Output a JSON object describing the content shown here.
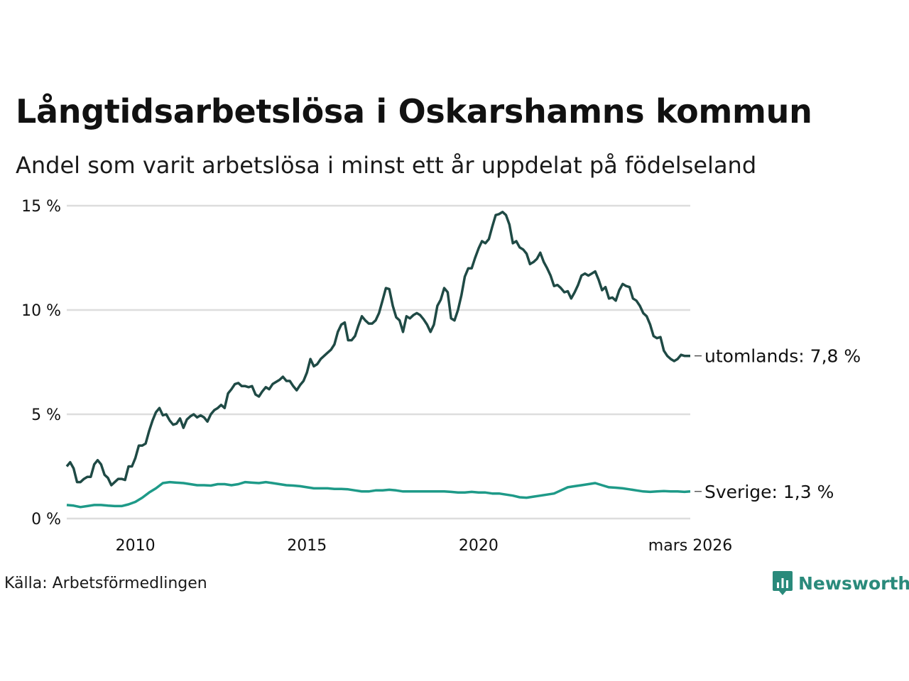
{
  "title": "Långtidsarbetslösa i Oskarshamns kommun",
  "subtitle": "Andel som varit arbetslösa i minst ett år uppdelat på födelseland",
  "source": "Källa: Arbetsförmedlingen",
  "brand": "Newsworthy",
  "colors": {
    "utomlands": "#1f4a45",
    "sverige": "#1e9a88",
    "grid": "#dddddd",
    "brand": "#2a8a7b"
  },
  "chart_data": {
    "type": "line",
    "title": "Långtidsarbetslösa i Oskarshamns kommun",
    "ylabel": "",
    "xlabel": "",
    "ylim": [
      0,
      15
    ],
    "xlim": [
      2008.0,
      2026.17
    ],
    "y_ticks": [
      0,
      5,
      10,
      15
    ],
    "y_tick_labels": [
      "0 %",
      "5 %",
      "10 %",
      "15 %"
    ],
    "x_ticks": [
      2010,
      2015,
      2020,
      2026.17
    ],
    "x_tick_labels": [
      "2010",
      "2015",
      "2020",
      "mars 2026"
    ],
    "grid": true,
    "series": [
      {
        "name": "utomlands",
        "end_label": "utomlands: 7,8 %",
        "points": [
          [
            2008.0,
            2.5
          ],
          [
            2008.1,
            2.7
          ],
          [
            2008.2,
            2.4
          ],
          [
            2008.3,
            1.75
          ],
          [
            2008.4,
            1.75
          ],
          [
            2008.5,
            1.9
          ],
          [
            2008.6,
            2.0
          ],
          [
            2008.7,
            2.0
          ],
          [
            2008.8,
            2.6
          ],
          [
            2008.9,
            2.8
          ],
          [
            2009.0,
            2.6
          ],
          [
            2009.1,
            2.1
          ],
          [
            2009.2,
            1.95
          ],
          [
            2009.3,
            1.6
          ],
          [
            2009.4,
            1.75
          ],
          [
            2009.5,
            1.9
          ],
          [
            2009.6,
            1.9
          ],
          [
            2009.7,
            1.85
          ],
          [
            2009.8,
            2.5
          ],
          [
            2009.9,
            2.5
          ],
          [
            2010.0,
            2.9
          ],
          [
            2010.1,
            3.5
          ],
          [
            2010.2,
            3.5
          ],
          [
            2010.3,
            3.6
          ],
          [
            2010.4,
            4.2
          ],
          [
            2010.5,
            4.7
          ],
          [
            2010.6,
            5.1
          ],
          [
            2010.7,
            5.3
          ],
          [
            2010.8,
            4.95
          ],
          [
            2010.9,
            5.0
          ],
          [
            2011.0,
            4.7
          ],
          [
            2011.1,
            4.5
          ],
          [
            2011.2,
            4.55
          ],
          [
            2011.3,
            4.8
          ],
          [
            2011.4,
            4.35
          ],
          [
            2011.5,
            4.75
          ],
          [
            2011.6,
            4.9
          ],
          [
            2011.7,
            5.0
          ],
          [
            2011.8,
            4.85
          ],
          [
            2011.9,
            4.95
          ],
          [
            2012.0,
            4.85
          ],
          [
            2012.1,
            4.65
          ],
          [
            2012.2,
            5.0
          ],
          [
            2012.3,
            5.2
          ],
          [
            2012.4,
            5.3
          ],
          [
            2012.5,
            5.45
          ],
          [
            2012.6,
            5.3
          ],
          [
            2012.7,
            6.0
          ],
          [
            2012.8,
            6.2
          ],
          [
            2012.9,
            6.45
          ],
          [
            2013.0,
            6.5
          ],
          [
            2013.1,
            6.35
          ],
          [
            2013.2,
            6.35
          ],
          [
            2013.3,
            6.3
          ],
          [
            2013.4,
            6.35
          ],
          [
            2013.5,
            5.95
          ],
          [
            2013.6,
            5.85
          ],
          [
            2013.7,
            6.1
          ],
          [
            2013.8,
            6.3
          ],
          [
            2013.9,
            6.2
          ],
          [
            2014.0,
            6.45
          ],
          [
            2014.1,
            6.55
          ],
          [
            2014.2,
            6.65
          ],
          [
            2014.3,
            6.8
          ],
          [
            2014.4,
            6.6
          ],
          [
            2014.5,
            6.6
          ],
          [
            2014.6,
            6.35
          ],
          [
            2014.7,
            6.15
          ],
          [
            2014.8,
            6.4
          ],
          [
            2014.9,
            6.6
          ],
          [
            2015.0,
            7.0
          ],
          [
            2015.1,
            7.65
          ],
          [
            2015.2,
            7.3
          ],
          [
            2015.3,
            7.4
          ],
          [
            2015.4,
            7.65
          ],
          [
            2015.5,
            7.8
          ],
          [
            2015.6,
            7.95
          ],
          [
            2015.7,
            8.1
          ],
          [
            2015.8,
            8.35
          ],
          [
            2015.9,
            8.95
          ],
          [
            2016.0,
            9.3
          ],
          [
            2016.1,
            9.4
          ],
          [
            2016.2,
            8.55
          ],
          [
            2016.3,
            8.55
          ],
          [
            2016.4,
            8.75
          ],
          [
            2016.5,
            9.25
          ],
          [
            2016.6,
            9.7
          ],
          [
            2016.7,
            9.5
          ],
          [
            2016.8,
            9.35
          ],
          [
            2016.9,
            9.35
          ],
          [
            2017.0,
            9.5
          ],
          [
            2017.1,
            9.85
          ],
          [
            2017.2,
            10.45
          ],
          [
            2017.3,
            11.05
          ],
          [
            2017.4,
            11.0
          ],
          [
            2017.5,
            10.2
          ],
          [
            2017.6,
            9.65
          ],
          [
            2017.7,
            9.5
          ],
          [
            2017.8,
            8.95
          ],
          [
            2017.9,
            9.7
          ],
          [
            2018.0,
            9.6
          ],
          [
            2018.1,
            9.75
          ],
          [
            2018.2,
            9.85
          ],
          [
            2018.3,
            9.75
          ],
          [
            2018.4,
            9.55
          ],
          [
            2018.5,
            9.3
          ],
          [
            2018.6,
            8.95
          ],
          [
            2018.7,
            9.3
          ],
          [
            2018.8,
            10.2
          ],
          [
            2018.9,
            10.5
          ],
          [
            2019.0,
            11.05
          ],
          [
            2019.1,
            10.85
          ],
          [
            2019.2,
            9.6
          ],
          [
            2019.3,
            9.5
          ],
          [
            2019.4,
            10.0
          ],
          [
            2019.5,
            10.7
          ],
          [
            2019.6,
            11.6
          ],
          [
            2019.7,
            12.0
          ],
          [
            2019.8,
            12.0
          ],
          [
            2019.9,
            12.5
          ],
          [
            2020.0,
            12.95
          ],
          [
            2020.1,
            13.3
          ],
          [
            2020.2,
            13.2
          ],
          [
            2020.3,
            13.4
          ],
          [
            2020.4,
            14.0
          ],
          [
            2020.5,
            14.55
          ],
          [
            2020.6,
            14.6
          ],
          [
            2020.7,
            14.7
          ],
          [
            2020.8,
            14.55
          ],
          [
            2020.9,
            14.1
          ],
          [
            2021.0,
            13.2
          ],
          [
            2021.1,
            13.3
          ],
          [
            2021.2,
            13.0
          ],
          [
            2021.3,
            12.9
          ],
          [
            2021.4,
            12.7
          ],
          [
            2021.5,
            12.2
          ],
          [
            2021.6,
            12.3
          ],
          [
            2021.7,
            12.45
          ],
          [
            2021.8,
            12.75
          ],
          [
            2021.9,
            12.3
          ],
          [
            2022.0,
            12.0
          ],
          [
            2022.1,
            11.65
          ],
          [
            2022.2,
            11.15
          ],
          [
            2022.3,
            11.2
          ],
          [
            2022.4,
            11.05
          ],
          [
            2022.5,
            10.85
          ],
          [
            2022.6,
            10.9
          ],
          [
            2022.7,
            10.55
          ],
          [
            2022.8,
            10.85
          ],
          [
            2022.9,
            11.2
          ],
          [
            2023.0,
            11.65
          ],
          [
            2023.1,
            11.75
          ],
          [
            2023.2,
            11.65
          ],
          [
            2023.3,
            11.75
          ],
          [
            2023.4,
            11.85
          ],
          [
            2023.5,
            11.45
          ],
          [
            2023.6,
            10.95
          ],
          [
            2023.7,
            11.1
          ],
          [
            2023.8,
            10.55
          ],
          [
            2023.9,
            10.6
          ],
          [
            2024.0,
            10.45
          ],
          [
            2024.1,
            10.95
          ],
          [
            2024.2,
            11.25
          ],
          [
            2024.3,
            11.15
          ],
          [
            2024.4,
            11.1
          ],
          [
            2024.5,
            10.55
          ],
          [
            2024.6,
            10.45
          ],
          [
            2024.7,
            10.2
          ],
          [
            2024.8,
            9.85
          ],
          [
            2024.9,
            9.7
          ],
          [
            2025.0,
            9.3
          ],
          [
            2025.1,
            8.75
          ],
          [
            2025.2,
            8.65
          ],
          [
            2025.3,
            8.7
          ],
          [
            2025.4,
            8.05
          ],
          [
            2025.5,
            7.8
          ],
          [
            2025.6,
            7.65
          ],
          [
            2025.7,
            7.55
          ],
          [
            2025.8,
            7.65
          ],
          [
            2025.9,
            7.85
          ],
          [
            2026.0,
            7.8
          ],
          [
            2026.17,
            7.8
          ]
        ]
      },
      {
        "name": "Sverige",
        "end_label": "Sverige: 1,3 %",
        "points": [
          [
            2008.0,
            0.65
          ],
          [
            2008.2,
            0.62
          ],
          [
            2008.4,
            0.55
          ],
          [
            2008.6,
            0.6
          ],
          [
            2008.8,
            0.65
          ],
          [
            2009.0,
            0.65
          ],
          [
            2009.2,
            0.62
          ],
          [
            2009.4,
            0.6
          ],
          [
            2009.6,
            0.6
          ],
          [
            2009.8,
            0.68
          ],
          [
            2010.0,
            0.8
          ],
          [
            2010.2,
            1.0
          ],
          [
            2010.4,
            1.25
          ],
          [
            2010.6,
            1.45
          ],
          [
            2010.8,
            1.7
          ],
          [
            2011.0,
            1.75
          ],
          [
            2011.2,
            1.72
          ],
          [
            2011.4,
            1.7
          ],
          [
            2011.6,
            1.65
          ],
          [
            2011.8,
            1.6
          ],
          [
            2012.0,
            1.6
          ],
          [
            2012.2,
            1.58
          ],
          [
            2012.4,
            1.65
          ],
          [
            2012.6,
            1.65
          ],
          [
            2012.8,
            1.6
          ],
          [
            2013.0,
            1.65
          ],
          [
            2013.2,
            1.75
          ],
          [
            2013.4,
            1.72
          ],
          [
            2013.6,
            1.7
          ],
          [
            2013.8,
            1.75
          ],
          [
            2014.0,
            1.7
          ],
          [
            2014.2,
            1.65
          ],
          [
            2014.4,
            1.6
          ],
          [
            2014.6,
            1.58
          ],
          [
            2014.8,
            1.55
          ],
          [
            2015.0,
            1.5
          ],
          [
            2015.2,
            1.45
          ],
          [
            2015.4,
            1.45
          ],
          [
            2015.6,
            1.45
          ],
          [
            2015.8,
            1.42
          ],
          [
            2016.0,
            1.42
          ],
          [
            2016.2,
            1.4
          ],
          [
            2016.4,
            1.35
          ],
          [
            2016.6,
            1.3
          ],
          [
            2016.8,
            1.3
          ],
          [
            2017.0,
            1.35
          ],
          [
            2017.2,
            1.35
          ],
          [
            2017.4,
            1.38
          ],
          [
            2017.6,
            1.35
          ],
          [
            2017.8,
            1.3
          ],
          [
            2018.0,
            1.3
          ],
          [
            2018.2,
            1.3
          ],
          [
            2018.4,
            1.3
          ],
          [
            2018.6,
            1.3
          ],
          [
            2018.8,
            1.3
          ],
          [
            2019.0,
            1.3
          ],
          [
            2019.2,
            1.28
          ],
          [
            2019.4,
            1.25
          ],
          [
            2019.6,
            1.25
          ],
          [
            2019.8,
            1.28
          ],
          [
            2020.0,
            1.25
          ],
          [
            2020.2,
            1.25
          ],
          [
            2020.4,
            1.2
          ],
          [
            2020.6,
            1.2
          ],
          [
            2020.8,
            1.15
          ],
          [
            2021.0,
            1.1
          ],
          [
            2021.2,
            1.02
          ],
          [
            2021.4,
            1.0
          ],
          [
            2021.6,
            1.05
          ],
          [
            2021.8,
            1.1
          ],
          [
            2022.0,
            1.15
          ],
          [
            2022.2,
            1.2
          ],
          [
            2022.4,
            1.35
          ],
          [
            2022.6,
            1.5
          ],
          [
            2022.8,
            1.55
          ],
          [
            2023.0,
            1.6
          ],
          [
            2023.2,
            1.65
          ],
          [
            2023.4,
            1.7
          ],
          [
            2023.6,
            1.6
          ],
          [
            2023.8,
            1.5
          ],
          [
            2024.0,
            1.48
          ],
          [
            2024.2,
            1.45
          ],
          [
            2024.4,
            1.4
          ],
          [
            2024.6,
            1.35
          ],
          [
            2024.8,
            1.3
          ],
          [
            2025.0,
            1.28
          ],
          [
            2025.2,
            1.3
          ],
          [
            2025.4,
            1.32
          ],
          [
            2025.6,
            1.3
          ],
          [
            2025.8,
            1.3
          ],
          [
            2026.0,
            1.28
          ],
          [
            2026.17,
            1.3
          ]
        ]
      }
    ]
  }
}
